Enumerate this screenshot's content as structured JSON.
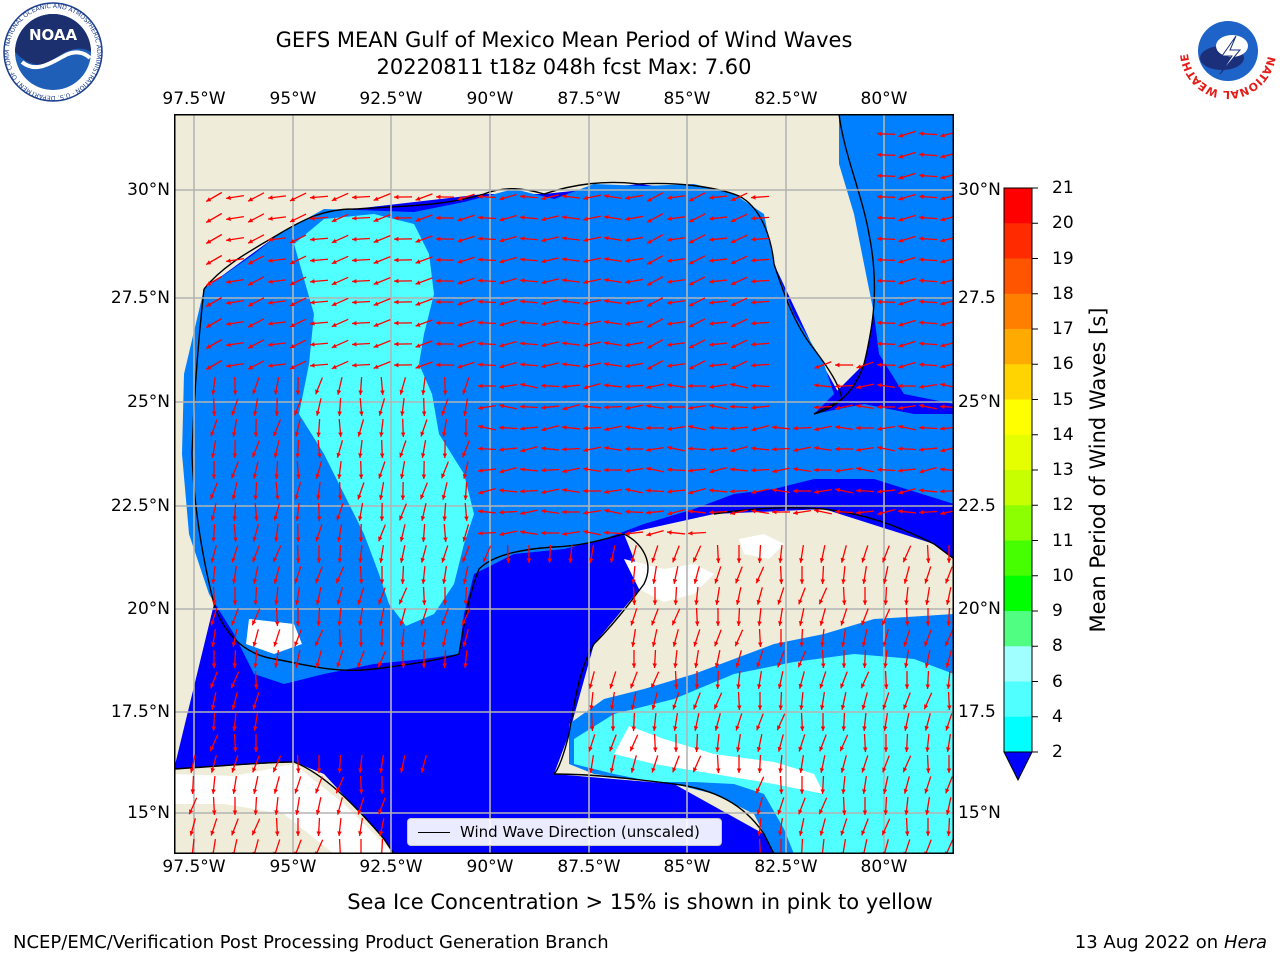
{
  "title": {
    "line1": "GEFS MEAN Gulf of Mexico Mean Period of Wind Waves",
    "line2": "20220811 t18z 048h fcst   Max: 7.60"
  },
  "axes": {
    "lon_ticks": [
      "97.5°W",
      "95°W",
      "92.5°W",
      "90°W",
      "87.5°W",
      "85°W",
      "82.5°W",
      "80°W"
    ],
    "lat_ticks_left": [
      "30°N",
      "27.5°N",
      "25°N",
      "22.5°N",
      "20°N",
      "17.5°N",
      "15°N"
    ],
    "lat_ticks_right": [
      "30°N",
      "27.5",
      "25°N",
      "22.5",
      "20°N",
      "17.5",
      "15°N"
    ]
  },
  "colorbar": {
    "title": "Mean Period of Wind Waves [s]",
    "labels": [
      "21",
      "20",
      "19",
      "18",
      "17",
      "16",
      "15",
      "14",
      "13",
      "12",
      "11",
      "10",
      "9",
      "8",
      "6",
      "4",
      "2"
    ],
    "colors": [
      "#ff0000",
      "#ff2a00",
      "#ff5500",
      "#ff7f00",
      "#ffaa00",
      "#ffd400",
      "#ffff00",
      "#e6ff00",
      "#c8ff00",
      "#8cff00",
      "#46ff00",
      "#00ff00",
      "#50ff82",
      "#a0ffff",
      "#50ffff",
      "#00ffff",
      "#0080ff"
    ],
    "extend_color": "#0000ff"
  },
  "map": {
    "land_color": "#efedd9",
    "deep_color": "#0000ff",
    "mid_color": "#0080ff",
    "shallow_color": "#50ffff",
    "arrow_color": "#ff0000",
    "grid_color": "#b4b4b4"
  },
  "legend": {
    "label": "Wind Wave Direction (unscaled)"
  },
  "subtitle": "Sea Ice Concentration > 15% is shown in pink to yellow",
  "footer": {
    "left": "NCEP/EMC/Verification Post Processing Product Generation Branch",
    "right_date": "13 Aug 2022 on",
    "right_host": "Hera"
  },
  "logos": {
    "noaa_text": "NOAA",
    "noaa_ring_text": "NATIONAL OCEANIC AND ATMOSPHERIC ADMINISTRATION · U.S. DEPARTMENT OF COMMERCE",
    "nws_ring_text": "NATIONAL WEATHER SERVICE"
  }
}
